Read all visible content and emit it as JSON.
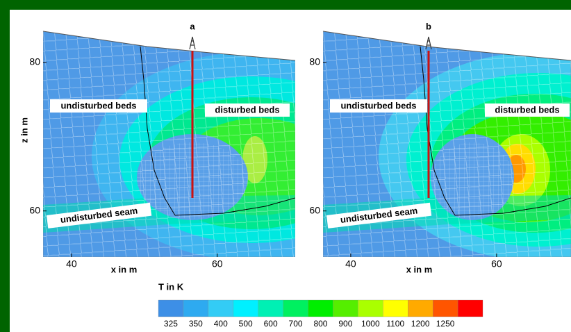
{
  "chart_data": [
    {
      "type": "contour",
      "xlabel": "x in m",
      "ylabel": "z in m",
      "xlim": [
        36.1,
        70.7
      ],
      "ylim": [
        53.8,
        84.2
      ],
      "xticks": [
        40,
        60
      ],
      "yticks": [
        60,
        80
      ],
      "well": "a",
      "annotations": [
        "undisturbed beds",
        "disturbed beds",
        "undisturbed seam"
      ]
    },
    {
      "type": "contour",
      "xlabel": "x in m",
      "xlim": [
        36.2,
        70.2
      ],
      "ylim": [
        53.8,
        84.2
      ],
      "xticks": [
        40,
        60
      ],
      "yticks": [
        60,
        80
      ],
      "well": "b",
      "annotations": [
        "undisturbed beds",
        "disturbed beds",
        "undisturbed seam"
      ]
    }
  ],
  "colorbar": {
    "title": "T in K",
    "ticks": [
      325,
      350,
      400,
      500,
      600,
      700,
      800,
      900,
      1000,
      1100,
      1200,
      1250
    ],
    "colors": [
      "#3d8fe6",
      "#2eaaf0",
      "#33ccf5",
      "#00f0ff",
      "#00f0b4",
      "#00f060",
      "#00ee00",
      "#55ee00",
      "#aaff00",
      "#ffff00",
      "#ffaa00",
      "#ff5500",
      "#ff0000"
    ]
  }
}
